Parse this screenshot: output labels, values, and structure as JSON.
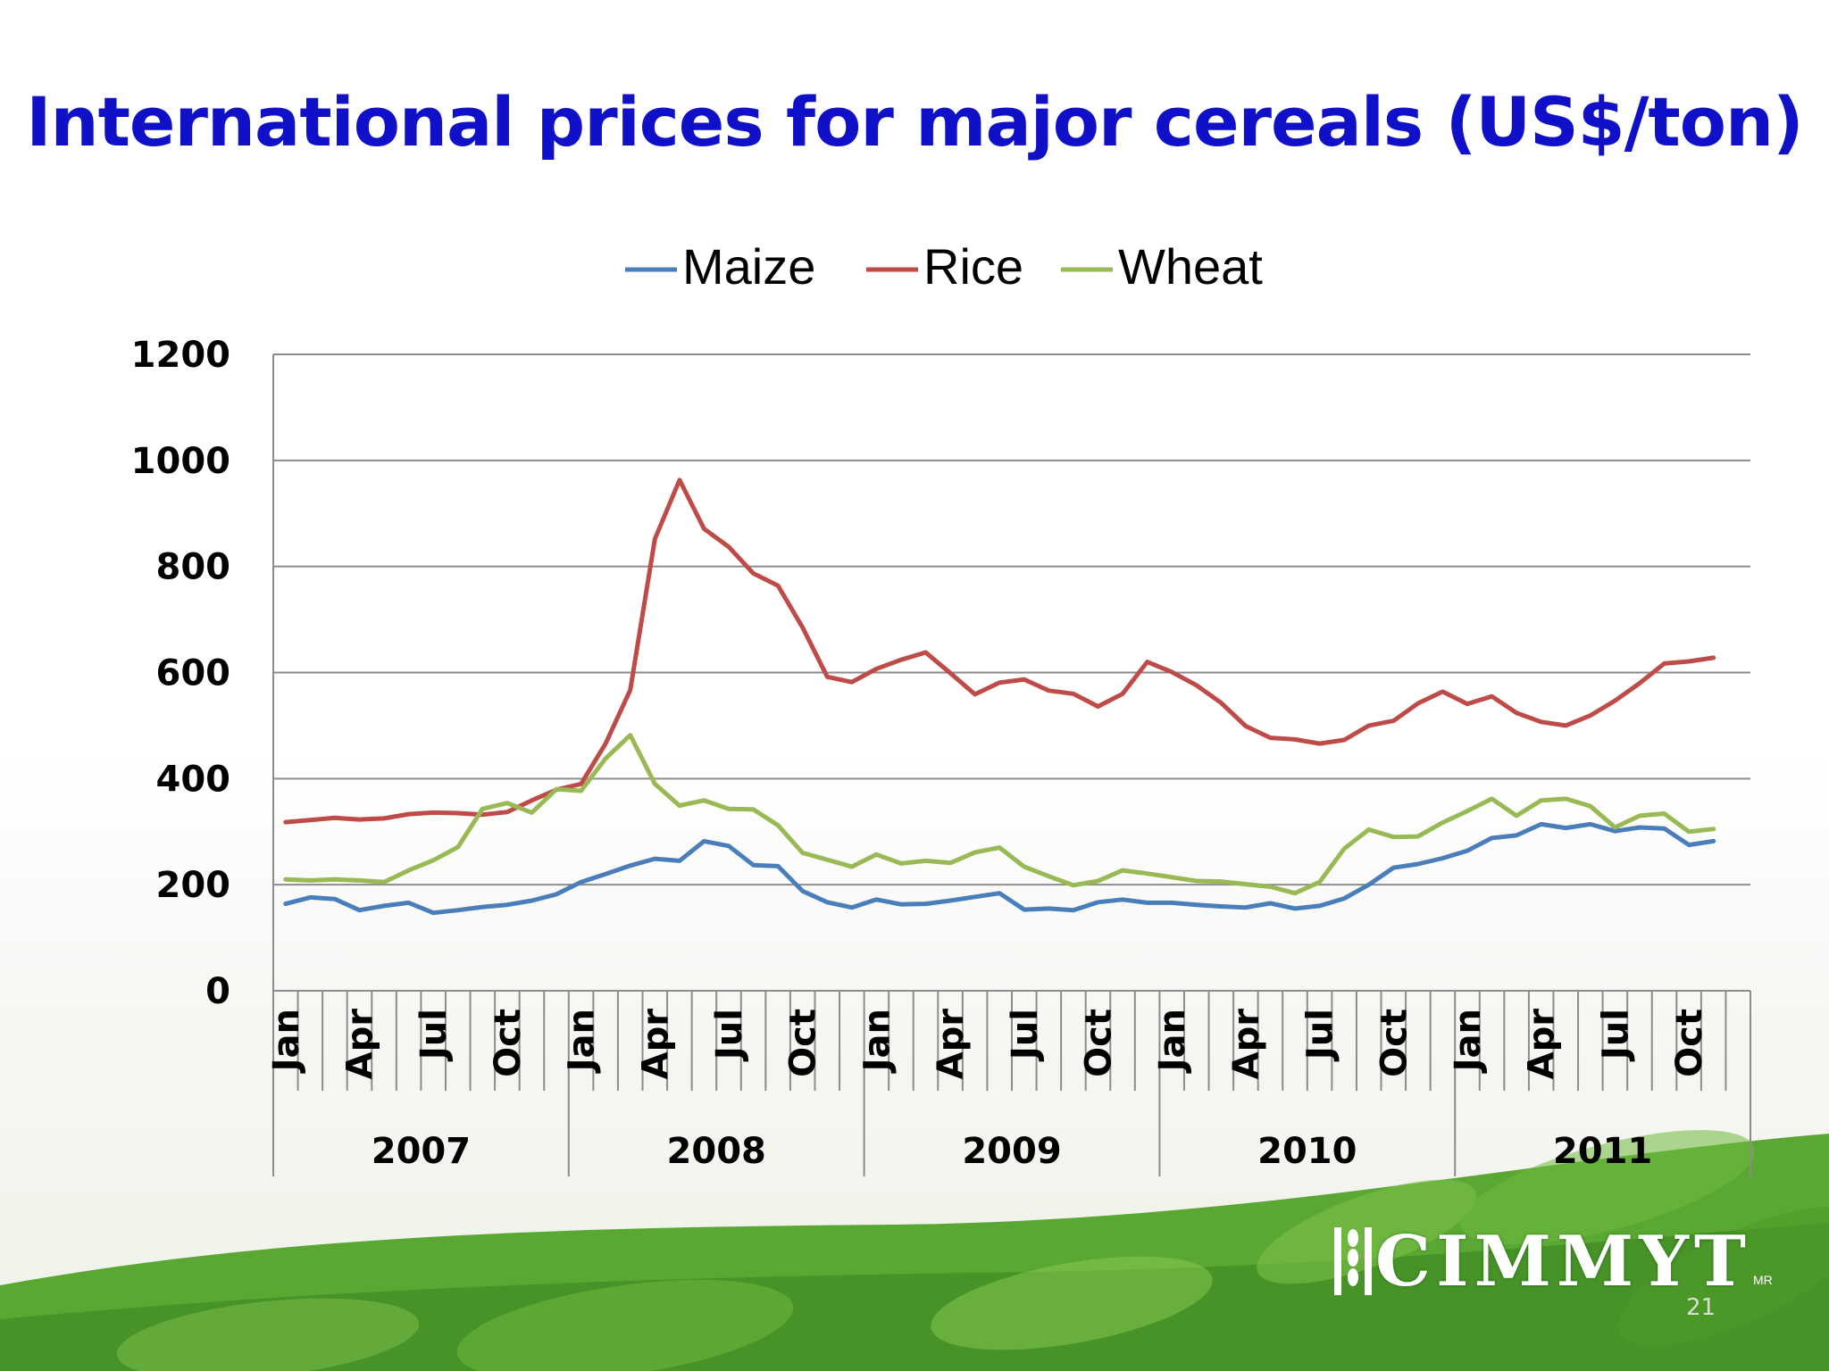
{
  "slide": {
    "title": "International prices for major cereals (US$/ton)",
    "slide_number": "21",
    "logo_text": "CIMMYT",
    "logo_mark": "MR"
  },
  "colors": {
    "title": "#1010c8",
    "maize": "#4a7ebb",
    "rice": "#be4b48",
    "wheat": "#98b954",
    "grid": "#8c8c8c",
    "leaf_green": "#4f9a2a"
  },
  "chart_data": {
    "type": "line",
    "title": "",
    "xlabel": "",
    "ylabel": "",
    "ylim": [
      0,
      1200
    ],
    "y_ticks": [
      0,
      200,
      400,
      600,
      800,
      1000,
      1200
    ],
    "grid": true,
    "legend_position": "top",
    "month_tick_labels": [
      "Jan",
      "Apr",
      "Jul",
      "Oct"
    ],
    "years": [
      "2007",
      "2008",
      "2009",
      "2010",
      "2011"
    ],
    "x": [
      "2007-01",
      "2007-02",
      "2007-03",
      "2007-04",
      "2007-05",
      "2007-06",
      "2007-07",
      "2007-08",
      "2007-09",
      "2007-10",
      "2007-11",
      "2007-12",
      "2008-01",
      "2008-02",
      "2008-03",
      "2008-04",
      "2008-05",
      "2008-06",
      "2008-07",
      "2008-08",
      "2008-09",
      "2008-10",
      "2008-11",
      "2008-12",
      "2009-01",
      "2009-02",
      "2009-03",
      "2009-04",
      "2009-05",
      "2009-06",
      "2009-07",
      "2009-08",
      "2009-09",
      "2009-10",
      "2009-11",
      "2009-12",
      "2010-01",
      "2010-02",
      "2010-03",
      "2010-04",
      "2010-05",
      "2010-06",
      "2010-07",
      "2010-08",
      "2010-09",
      "2010-10",
      "2010-11",
      "2010-12",
      "2011-01",
      "2011-02",
      "2011-03",
      "2011-04",
      "2011-05",
      "2011-06",
      "2011-07",
      "2011-08",
      "2011-09",
      "2011-10",
      "2011-11"
    ],
    "series": [
      {
        "name": "Maize",
        "values": [
          164,
          176,
          173,
          152,
          160,
          166,
          147,
          152,
          158,
          162,
          170,
          182,
          205,
          220,
          236,
          249,
          245,
          282,
          273,
          237,
          235,
          188,
          167,
          157,
          172,
          163,
          164,
          170,
          177,
          184,
          153,
          155,
          152,
          167,
          172,
          166,
          166,
          162,
          159,
          157,
          165,
          155,
          160,
          174,
          200,
          232,
          239,
          250,
          264,
          288,
          293,
          314,
          307,
          314,
          301,
          308,
          306,
          275,
          282
        ]
      },
      {
        "name": "Rice",
        "values": [
          318,
          322,
          326,
          323,
          325,
          333,
          336,
          335,
          332,
          337,
          359,
          379,
          390,
          466,
          567,
          852,
          963,
          871,
          837,
          787,
          764,
          685,
          592,
          582,
          607,
          624,
          638,
          599,
          559,
          581,
          587,
          566,
          560,
          536,
          560,
          620,
          601,
          576,
          543,
          499,
          477,
          474,
          466,
          473,
          500,
          509,
          542,
          564,
          541,
          555,
          524,
          507,
          500,
          519,
          547,
          580,
          617,
          621,
          628
        ]
      },
      {
        "name": "Wheat",
        "values": [
          210,
          208,
          210,
          208,
          205,
          227,
          246,
          271,
          343,
          354,
          336,
          380,
          377,
          438,
          482,
          390,
          349,
          359,
          343,
          342,
          312,
          260,
          247,
          234,
          257,
          240,
          245,
          241,
          261,
          270,
          234,
          216,
          199,
          207,
          227,
          221,
          214,
          207,
          206,
          201,
          196,
          184,
          205,
          268,
          304,
          290,
          291,
          317,
          339,
          362,
          330,
          359,
          362,
          348,
          308,
          330,
          334,
          300,
          305
        ]
      }
    ]
  }
}
